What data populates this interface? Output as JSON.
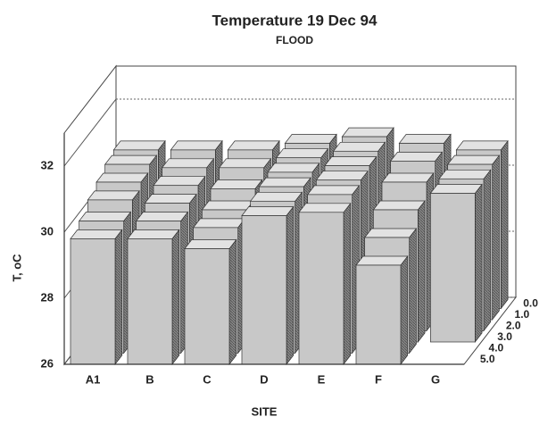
{
  "chart_data": {
    "type": "bar3d",
    "title": "Temperature 19 Dec 94",
    "subtitle": "FLOOD",
    "x_label": "SITE",
    "y_label": "T, oC",
    "categories": [
      "A1",
      "B",
      "C",
      "D",
      "E",
      "F",
      "G"
    ],
    "ylim": [
      26,
      33
    ],
    "yticks": [
      26,
      28,
      30,
      32
    ],
    "grid": true,
    "series": [
      {
        "name": "0.0",
        "color": "#c8c8c8",
        "values": [
          30.8,
          30.8,
          30.8,
          31.0,
          31.2,
          31.0,
          30.8
        ]
      },
      {
        "name": "1.0",
        "color": "#c8c8c8",
        "values": [
          30.7,
          30.6,
          30.6,
          30.9,
          31.1,
          30.8,
          30.7
        ]
      },
      {
        "name": "2.0",
        "color": "#c8c8c8",
        "values": [
          30.5,
          30.4,
          30.3,
          30.8,
          31.0,
          30.5,
          30.6
        ]
      },
      {
        "name": "3.0",
        "color": "#c8c8c8",
        "values": [
          30.3,
          30.2,
          30.0,
          30.7,
          30.9,
          30.0,
          30.5
        ]
      },
      {
        "name": "4.0",
        "color": "#c8c8c8",
        "values": [
          30.0,
          30.0,
          29.8,
          30.6,
          30.8,
          29.5,
          null
        ]
      },
      {
        "name": "5.0",
        "color": "#c8c8c8",
        "values": [
          29.8,
          29.8,
          29.5,
          30.5,
          30.6,
          29.0,
          null
        ]
      }
    ]
  }
}
